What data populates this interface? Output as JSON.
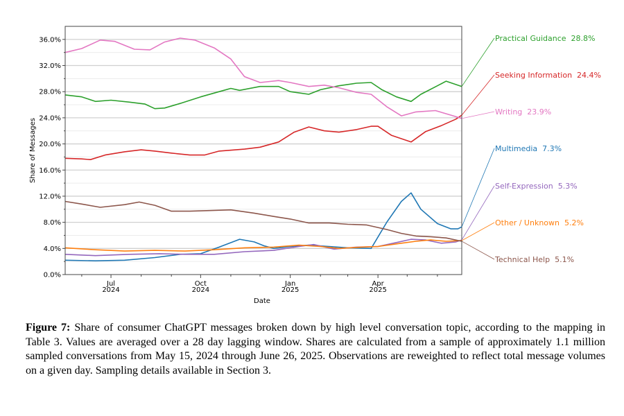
{
  "chart_data": {
    "type": "line",
    "title": "",
    "xlabel": "Date",
    "ylabel": "Share of Messages",
    "ylim": [
      0,
      38
    ],
    "xlim": [
      "2024-05-15",
      "2025-06-26"
    ],
    "grid": true,
    "y_ticks": [
      "0.0%",
      "4.0%",
      "8.0%",
      "12.0%",
      "16.0%",
      "20.0%",
      "24.0%",
      "28.0%",
      "32.0%",
      "36.0%"
    ],
    "y_tick_values": [
      0,
      4,
      8,
      12,
      16,
      20,
      24,
      28,
      32,
      36
    ],
    "x_ticks": [
      {
        "date": "2024-07-01",
        "month": "Jul",
        "year": "2024"
      },
      {
        "date": "2024-10-01",
        "month": "Oct",
        "year": "2024"
      },
      {
        "date": "2025-01-01",
        "month": "Jan",
        "year": "2025"
      },
      {
        "date": "2025-04-01",
        "month": "Apr",
        "year": "2025"
      }
    ],
    "x_minor_ticks": [
      "2024-06-01",
      "2024-08-01",
      "2024-09-01",
      "2024-11-01",
      "2024-12-01",
      "2025-02-01",
      "2025-03-01",
      "2025-05-01",
      "2025-06-01"
    ],
    "legend": "right-side labels",
    "series": [
      {
        "name": "Practical Guidance",
        "final_label": "28.8%",
        "color": "#2ca02c",
        "points": [
          [
            "2024-05-15",
            27.5
          ],
          [
            "2024-06-01",
            27.2
          ],
          [
            "2024-06-15",
            26.5
          ],
          [
            "2024-07-01",
            26.7
          ],
          [
            "2024-07-20",
            26.4
          ],
          [
            "2024-08-05",
            26.1
          ],
          [
            "2024-08-15",
            25.4
          ],
          [
            "2024-08-25",
            25.5
          ],
          [
            "2024-09-10",
            26.2
          ],
          [
            "2024-10-01",
            27.2
          ],
          [
            "2024-10-20",
            28.0
          ],
          [
            "2024-11-01",
            28.5
          ],
          [
            "2024-11-10",
            28.2
          ],
          [
            "2024-12-01",
            28.8
          ],
          [
            "2024-12-20",
            28.8
          ],
          [
            "2025-01-01",
            28.0
          ],
          [
            "2025-01-20",
            27.6
          ],
          [
            "2025-02-01",
            28.3
          ],
          [
            "2025-02-20",
            28.9
          ],
          [
            "2025-03-10",
            29.3
          ],
          [
            "2025-03-25",
            29.4
          ],
          [
            "2025-04-05",
            28.3
          ],
          [
            "2025-04-20",
            27.2
          ],
          [
            "2025-05-05",
            26.5
          ],
          [
            "2025-05-15",
            27.6
          ],
          [
            "2025-06-01",
            28.9
          ],
          [
            "2025-06-10",
            29.6
          ],
          [
            "2025-06-26",
            28.8
          ]
        ]
      },
      {
        "name": "Seeking Information",
        "final_label": "24.4%",
        "color": "#d62728",
        "points": [
          [
            "2024-05-15",
            17.8
          ],
          [
            "2024-06-01",
            17.7
          ],
          [
            "2024-06-10",
            17.6
          ],
          [
            "2024-06-25",
            18.3
          ],
          [
            "2024-07-15",
            18.8
          ],
          [
            "2024-08-01",
            19.1
          ],
          [
            "2024-08-15",
            18.9
          ],
          [
            "2024-09-01",
            18.6
          ],
          [
            "2024-09-20",
            18.3
          ],
          [
            "2024-10-05",
            18.3
          ],
          [
            "2024-10-20",
            18.9
          ],
          [
            "2024-11-15",
            19.2
          ],
          [
            "2024-12-01",
            19.5
          ],
          [
            "2024-12-20",
            20.3
          ],
          [
            "2025-01-05",
            21.8
          ],
          [
            "2025-01-20",
            22.6
          ],
          [
            "2025-02-05",
            22.0
          ],
          [
            "2025-02-20",
            21.8
          ],
          [
            "2025-03-10",
            22.2
          ],
          [
            "2025-03-25",
            22.7
          ],
          [
            "2025-04-01",
            22.7
          ],
          [
            "2025-04-15",
            21.3
          ],
          [
            "2025-05-05",
            20.3
          ],
          [
            "2025-05-20",
            21.9
          ],
          [
            "2025-06-05",
            22.8
          ],
          [
            "2025-06-20",
            23.8
          ],
          [
            "2025-06-26",
            24.4
          ]
        ]
      },
      {
        "name": "Writing",
        "final_label": "23.9%",
        "color": "#e377c2",
        "points": [
          [
            "2024-05-15",
            34.0
          ],
          [
            "2024-06-01",
            34.6
          ],
          [
            "2024-06-20",
            35.9
          ],
          [
            "2024-07-05",
            35.7
          ],
          [
            "2024-07-25",
            34.5
          ],
          [
            "2024-08-10",
            34.4
          ],
          [
            "2024-08-25",
            35.6
          ],
          [
            "2024-09-10",
            36.2
          ],
          [
            "2024-09-25",
            35.9
          ],
          [
            "2024-10-15",
            34.7
          ],
          [
            "2024-11-01",
            33.0
          ],
          [
            "2024-11-15",
            30.3
          ],
          [
            "2024-12-01",
            29.4
          ],
          [
            "2024-12-20",
            29.7
          ],
          [
            "2025-01-01",
            29.4
          ],
          [
            "2025-01-20",
            28.8
          ],
          [
            "2025-02-05",
            29.0
          ],
          [
            "2025-02-20",
            28.6
          ],
          [
            "2025-03-10",
            27.9
          ],
          [
            "2025-03-25",
            27.6
          ],
          [
            "2025-04-10",
            25.7
          ],
          [
            "2025-04-25",
            24.3
          ],
          [
            "2025-05-10",
            24.9
          ],
          [
            "2025-05-30",
            25.1
          ],
          [
            "2025-06-15",
            24.4
          ],
          [
            "2025-06-26",
            23.9
          ]
        ]
      },
      {
        "name": "Multimedia",
        "final_label": "7.3%",
        "color": "#1f77b4",
        "points": [
          [
            "2024-05-15",
            2.2
          ],
          [
            "2024-06-15",
            2.1
          ],
          [
            "2024-07-15",
            2.2
          ],
          [
            "2024-08-15",
            2.6
          ],
          [
            "2024-09-10",
            3.1
          ],
          [
            "2024-10-01",
            3.2
          ],
          [
            "2024-10-20",
            4.2
          ],
          [
            "2024-11-10",
            5.4
          ],
          [
            "2024-11-25",
            5.0
          ],
          [
            "2024-12-05",
            4.4
          ],
          [
            "2024-12-15",
            4.0
          ],
          [
            "2025-01-01",
            4.3
          ],
          [
            "2025-01-20",
            4.5
          ],
          [
            "2025-02-10",
            4.3
          ],
          [
            "2025-03-01",
            4.1
          ],
          [
            "2025-03-25",
            4.0
          ],
          [
            "2025-04-10",
            8.0
          ],
          [
            "2025-04-25",
            11.2
          ],
          [
            "2025-05-05",
            12.5
          ],
          [
            "2025-05-15",
            10.0
          ],
          [
            "2025-06-01",
            7.8
          ],
          [
            "2025-06-15",
            7.0
          ],
          [
            "2025-06-22",
            7.0
          ],
          [
            "2025-06-26",
            7.3
          ]
        ]
      },
      {
        "name": "Self-Expression",
        "final_label": "5.3%",
        "color": "#9467bd",
        "points": [
          [
            "2024-05-15",
            3.1
          ],
          [
            "2024-06-15",
            2.9
          ],
          [
            "2024-07-20",
            3.1
          ],
          [
            "2024-08-20",
            3.2
          ],
          [
            "2024-09-15",
            3.1
          ],
          [
            "2024-10-15",
            3.1
          ],
          [
            "2024-11-15",
            3.5
          ],
          [
            "2024-12-15",
            3.7
          ],
          [
            "2025-01-10",
            4.3
          ],
          [
            "2025-01-25",
            4.6
          ],
          [
            "2025-02-15",
            3.9
          ],
          [
            "2025-03-10",
            4.2
          ],
          [
            "2025-04-01",
            4.3
          ],
          [
            "2025-04-20",
            4.9
          ],
          [
            "2025-05-05",
            5.4
          ],
          [
            "2025-05-20",
            5.3
          ],
          [
            "2025-06-05",
            4.8
          ],
          [
            "2025-06-20",
            5.0
          ],
          [
            "2025-06-26",
            5.3
          ]
        ]
      },
      {
        "name": "Other / Unknown",
        "final_label": "5.2%",
        "color": "#ff7f0e",
        "points": [
          [
            "2024-05-15",
            4.1
          ],
          [
            "2024-06-15",
            3.8
          ],
          [
            "2024-07-15",
            3.6
          ],
          [
            "2024-08-15",
            3.7
          ],
          [
            "2024-09-15",
            3.6
          ],
          [
            "2024-10-15",
            3.8
          ],
          [
            "2024-11-15",
            4.1
          ],
          [
            "2024-12-15",
            4.2
          ],
          [
            "2025-01-10",
            4.5
          ],
          [
            "2025-02-01",
            4.3
          ],
          [
            "2025-02-20",
            4.0
          ],
          [
            "2025-03-15",
            4.2
          ],
          [
            "2025-04-01",
            4.3
          ],
          [
            "2025-04-25",
            4.8
          ],
          [
            "2025-05-10",
            5.1
          ],
          [
            "2025-05-25",
            5.3
          ],
          [
            "2025-06-10",
            5.1
          ],
          [
            "2025-06-26",
            5.2
          ]
        ]
      },
      {
        "name": "Technical Help",
        "final_label": "5.1%",
        "color": "#8c564b",
        "points": [
          [
            "2024-05-15",
            11.2
          ],
          [
            "2024-06-01",
            10.8
          ],
          [
            "2024-06-20",
            10.3
          ],
          [
            "2024-07-15",
            10.7
          ],
          [
            "2024-07-30",
            11.1
          ],
          [
            "2024-08-15",
            10.6
          ],
          [
            "2024-09-01",
            9.7
          ],
          [
            "2024-09-20",
            9.7
          ],
          [
            "2024-10-10",
            9.8
          ],
          [
            "2024-11-01",
            9.9
          ],
          [
            "2024-11-25",
            9.4
          ],
          [
            "2024-12-15",
            8.9
          ],
          [
            "2025-01-01",
            8.5
          ],
          [
            "2025-01-20",
            7.9
          ],
          [
            "2025-02-10",
            7.9
          ],
          [
            "2025-03-01",
            7.7
          ],
          [
            "2025-03-20",
            7.6
          ],
          [
            "2025-04-10",
            6.9
          ],
          [
            "2025-04-25",
            6.3
          ],
          [
            "2025-05-10",
            5.9
          ],
          [
            "2025-05-25",
            5.8
          ],
          [
            "2025-06-10",
            5.6
          ],
          [
            "2025-06-26",
            5.1
          ]
        ]
      }
    ]
  },
  "caption": {
    "label": "Figure 7:",
    "text": "Share of consumer ChatGPT messages broken down by high level conversation topic, according to the mapping in Table 3. Values are averaged over a 28 day lagging window. Shares are calculated from a sample of approximately 1.1 million sampled conversations from May 15, 2024 through June 26, 2025. Observations are reweighted to reflect total message volumes on a given day. Sampling details available in Section 3."
  }
}
